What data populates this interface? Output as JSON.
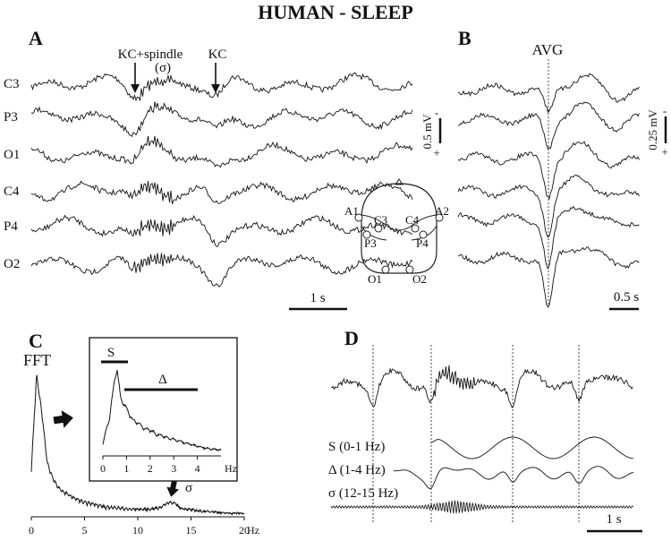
{
  "title": "HUMAN - SLEEP",
  "panel_a": {
    "label": "A",
    "events": [
      {
        "label": "KC+spindle",
        "sublabel": "(σ)"
      },
      {
        "label": "KC"
      }
    ],
    "channels": [
      "C3",
      "P3",
      "O1",
      "C4",
      "P4",
      "O2"
    ],
    "scale_time": "1 s",
    "electrode_map": {
      "electrodes": [
        "A1",
        "C3",
        "C4",
        "A2",
        "P3",
        "P4",
        "O1",
        "O2"
      ]
    }
  },
  "panel_b": {
    "label": "B",
    "title": "AVG",
    "scale_v1": "0.5 mV",
    "scale_v2": "0.25 mV",
    "scale_time": "0.5 s",
    "polarity_minus": "-",
    "polarity_plus": "+"
  },
  "panel_c": {
    "label": "C",
    "title": "FFT",
    "sigma": "σ",
    "inset": {
      "band_s": "S",
      "band_delta": "Δ",
      "unit": "Hz"
    }
  },
  "panel_d": {
    "label": "D",
    "bands": [
      "S (0-1 Hz)",
      "Δ (1-4 Hz)",
      "σ (12-15 Hz)"
    ],
    "scale_time": "1 s"
  },
  "chart_data": [
    {
      "type": "line",
      "panel": "C",
      "title": "FFT",
      "x": [
        0,
        0.5,
        1,
        1.5,
        2,
        2.5,
        3,
        4,
        5,
        6,
        7,
        8,
        9,
        10,
        11,
        12,
        12.5,
        13,
        13.5,
        14,
        15,
        16,
        17,
        18,
        19,
        20
      ],
      "y": [
        0.3,
        0.92,
        0.66,
        0.34,
        0.24,
        0.18,
        0.15,
        0.11,
        0.08,
        0.07,
        0.05,
        0.05,
        0.04,
        0.04,
        0.04,
        0.05,
        0.07,
        0.09,
        0.08,
        0.05,
        0.04,
        0.03,
        0.03,
        0.02,
        0.02,
        0.02
      ],
      "xticks": [
        0,
        5,
        10,
        15,
        20
      ],
      "xlim": [
        0,
        20
      ],
      "unit": "Hz",
      "annotation": "σ",
      "annotation_x": 13.5
    },
    {
      "type": "line",
      "panel": "C-inset",
      "x": [
        0,
        0.25,
        0.5,
        0.6,
        0.75,
        1,
        1.25,
        1.5,
        1.75,
        2,
        2.25,
        2.5,
        2.75,
        3,
        3.25,
        3.5,
        4,
        4.5,
        5
      ],
      "y": [
        0.12,
        0.35,
        0.82,
        0.95,
        0.62,
        0.5,
        0.38,
        0.34,
        0.28,
        0.27,
        0.22,
        0.21,
        0.18,
        0.17,
        0.15,
        0.13,
        0.1,
        0.07,
        0.06
      ],
      "xticks": [
        0,
        1,
        2,
        3,
        4
      ],
      "xlim": [
        0,
        5
      ],
      "unit": "Hz",
      "bands": [
        {
          "name": "S",
          "from": 0,
          "to": 1
        },
        {
          "name": "Δ",
          "from": 1,
          "to": 4
        }
      ]
    }
  ]
}
